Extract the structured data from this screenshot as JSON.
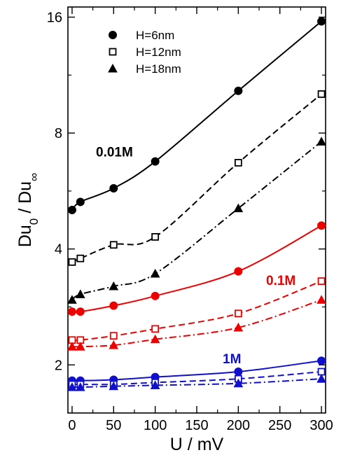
{
  "chart_data": {
    "type": "line",
    "xlabel": "U / mV",
    "ylabel_main": "Du",
    "ylabel_sub0": "0",
    "ylabel_sep": " / Du",
    "ylabel_subinf": "∞",
    "xlim": [
      -5,
      305
    ],
    "ylim": [
      1.5,
      17
    ],
    "yscale": "log",
    "grid": false,
    "legend_position": "top-left",
    "xticks": [
      0,
      50,
      100,
      150,
      200,
      250,
      300
    ],
    "yticks": [
      2,
      4,
      8,
      16
    ],
    "x": [
      0,
      10,
      50,
      100,
      200,
      300
    ],
    "legend": [
      {
        "label": "H=6nm",
        "marker": "circle-filled"
      },
      {
        "label": "H=12nm",
        "marker": "square-open"
      },
      {
        "label": "H=18nm",
        "marker": "triangle-filled"
      }
    ],
    "groups": [
      {
        "label": "0.01M",
        "color": "#000000"
      },
      {
        "label": "0.1M",
        "color": "#ee0000"
      },
      {
        "label": "1M",
        "color": "#1010cc"
      }
    ],
    "series": [
      {
        "group": 0,
        "thickness": "H=6nm",
        "marker": "circle-filled",
        "dash": "solid",
        "values": [
          5.05,
          5.3,
          5.75,
          6.75,
          10.3,
          15.6
        ]
      },
      {
        "group": 0,
        "thickness": "H=12nm",
        "marker": "square-open",
        "dash": "dashed",
        "values": [
          3.7,
          3.78,
          4.1,
          4.3,
          6.7,
          10.1
        ]
      },
      {
        "group": 0,
        "thickness": "H=18nm",
        "marker": "triangle-filled",
        "dash": "dashdot",
        "values": [
          2.95,
          3.05,
          3.2,
          3.45,
          5.1,
          7.6
        ]
      },
      {
        "group": 1,
        "thickness": "H=6nm",
        "marker": "circle-filled",
        "dash": "solid",
        "values": [
          2.75,
          2.75,
          2.85,
          3.02,
          3.5,
          4.6
        ]
      },
      {
        "group": 1,
        "thickness": "H=12nm",
        "marker": "square-open",
        "dash": "dashed",
        "values": [
          2.32,
          2.32,
          2.38,
          2.48,
          2.72,
          3.3
        ]
      },
      {
        "group": 1,
        "thickness": "H=18nm",
        "marker": "triangle-filled",
        "dash": "dashdot",
        "values": [
          2.23,
          2.23,
          2.25,
          2.33,
          2.5,
          2.95
        ]
      },
      {
        "group": 2,
        "thickness": "H=6nm",
        "marker": "circle-filled",
        "dash": "solid",
        "values": [
          1.82,
          1.82,
          1.83,
          1.86,
          1.92,
          2.05
        ]
      },
      {
        "group": 2,
        "thickness": "H=12nm",
        "marker": "square-open",
        "dash": "dashed",
        "values": [
          1.78,
          1.78,
          1.78,
          1.8,
          1.84,
          1.92
        ]
      },
      {
        "group": 2,
        "thickness": "H=18nm",
        "marker": "triangle-filled",
        "dash": "dashdot",
        "values": [
          1.75,
          1.75,
          1.76,
          1.77,
          1.79,
          1.84
        ]
      }
    ]
  }
}
